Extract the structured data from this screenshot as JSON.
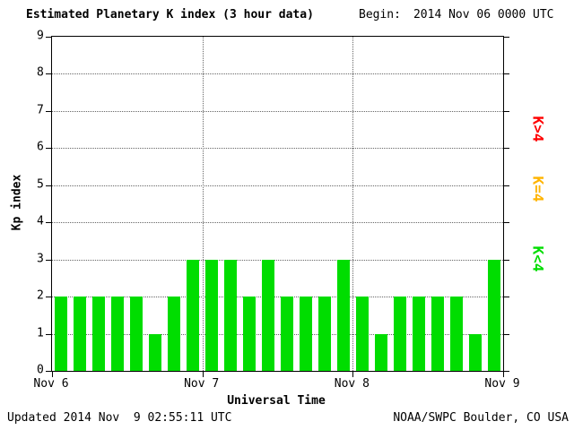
{
  "header": {
    "title": "Estimated Planetary K index (3 hour data)",
    "begin_label": "Begin:",
    "begin_value": "2014 Nov 06 0000 UTC"
  },
  "axes": {
    "y_label": "Kp index",
    "x_label": "Universal Time"
  },
  "legend": [
    {
      "label": "K>4",
      "color": "#ff0000"
    },
    {
      "label": "K=4",
      "color": "#ffb400"
    },
    {
      "label": "K<4",
      "color": "#00dd00"
    }
  ],
  "footer": {
    "updated": "Updated 2014 Nov  9 02:55:11 UTC",
    "source": "NOAA/SWPC Boulder, CO USA"
  },
  "chart_data": {
    "type": "bar",
    "title": "Estimated Planetary K index (3 hour data)",
    "begin": "2014 Nov 06 0000 UTC",
    "xlabel": "Universal Time",
    "ylabel": "Kp index",
    "ylim": [
      0,
      9
    ],
    "yticks": [
      0,
      1,
      2,
      3,
      4,
      5,
      6,
      7,
      8,
      9
    ],
    "x_tick_labels": [
      "Nov 6",
      "Nov 7",
      "Nov 8",
      "Nov 9"
    ],
    "interval_hours": 3,
    "bar_color": "#00dd00",
    "grid": true,
    "values": [
      2,
      2,
      2,
      2,
      2,
      1,
      2,
      3,
      3,
      3,
      2,
      3,
      2,
      2,
      2,
      3,
      2,
      1,
      2,
      2,
      2,
      2,
      1,
      3
    ]
  }
}
